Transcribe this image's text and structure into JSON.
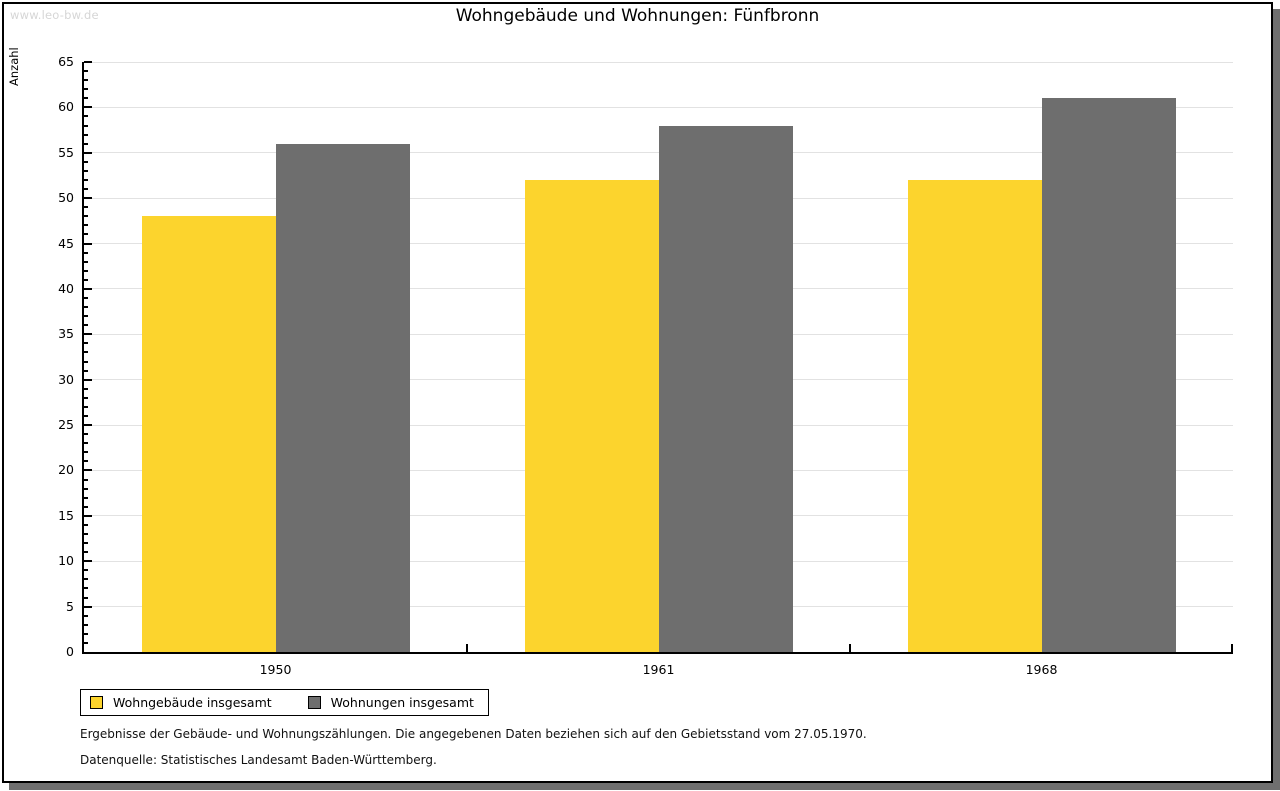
{
  "watermark": "www.leo-bw.de",
  "chart_data": {
    "type": "bar",
    "title": "Wohngebäude und Wohnungen: Fünfbronn",
    "ylabel": "Anzahl",
    "categories": [
      "1950",
      "1961",
      "1968"
    ],
    "series": [
      {
        "name": "Wohngebäude insgesamt",
        "color": "#FCD42D",
        "values": [
          48,
          52,
          52
        ]
      },
      {
        "name": "Wohnungen insgesamt",
        "color": "#6E6E6E",
        "values": [
          56,
          58,
          61
        ]
      }
    ],
    "ylim": [
      0,
      65
    ],
    "yticks": [
      0,
      5,
      10,
      15,
      20,
      25,
      30,
      35,
      40,
      45,
      50,
      55,
      60,
      65
    ],
    "y_major_step": 5,
    "y_minor_step": 1,
    "grid": true,
    "gridline_color": "#E2E2E2",
    "legend_position": "bottom-left"
  },
  "footer": {
    "line1": "Ergebnisse der Gebäude- und Wohnungszählungen. Die angegebenen Daten beziehen sich auf den Gebietsstand vom 27.05.1970.",
    "line2": "Datenquelle: Statistisches Landesamt Baden-Württemberg."
  }
}
